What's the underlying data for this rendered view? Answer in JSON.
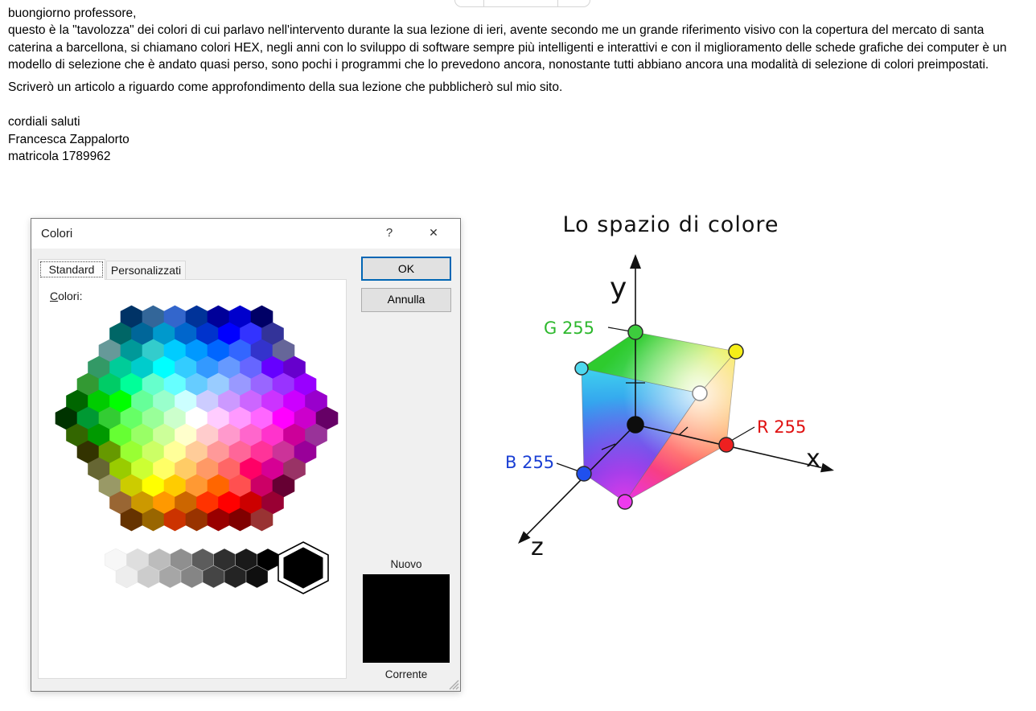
{
  "email": {
    "greeting": "buongiorno professore,",
    "paragraph": "questo è la \"tavolozza\" dei colori di cui parlavo nell'intervento durante la sua lezione di ieri, avente secondo me un grande riferimento visivo con la copertura del mercato di santa caterina a barcellona, si chiamano colori HEX, negli anni con lo sviluppo di software sempre più intelligenti e interattivi e con il miglioramento delle schede grafiche dei computer è un modello di selezione che è andato quasi perso, sono pochi i programmi che lo prevedono ancora, nonostante tutti abbiano ancora una modalità di selezione di colori preimpostati.",
    "article_line": "Scriverò un articolo a riguardo come approfondimento della sua lezione che pubblicherò sul mio sito.",
    "closing": "cordiali saluti",
    "sender_name": "Francesca Zappalorto",
    "sender_id": "matricola 1789962"
  },
  "dialog": {
    "title": "Colori",
    "help_glyph": "?",
    "close_glyph": "✕",
    "tabs": [
      {
        "label": "Standard",
        "active": true
      },
      {
        "label": "Personalizzati",
        "active": false
      }
    ],
    "colors_label_mnemonic": "C",
    "colors_label_rest": "olori:",
    "ok_label": "OK",
    "cancel_label": "Annulla",
    "new_label": "Nuovo",
    "current_label": "Corrente",
    "selected_color": "#000000",
    "accent_border": "#0066b4",
    "palette": {
      "rows": [
        [
          "#003366",
          "#336699",
          "#3366CC",
          "#003399",
          "#000099",
          "#0000CC",
          "#000066"
        ],
        [
          "#006666",
          "#006699",
          "#0099CC",
          "#0066CC",
          "#0033CC",
          "#0000FF",
          "#3333FF",
          "#333399"
        ],
        [
          "#669999",
          "#009999",
          "#33CCCC",
          "#00CCFF",
          "#0099FF",
          "#0066FF",
          "#3366FF",
          "#3333CC",
          "#666699"
        ],
        [
          "#339966",
          "#00CC99",
          "#00CCCC",
          "#00FFFF",
          "#33CCFF",
          "#3399FF",
          "#6699FF",
          "#6666FF",
          "#6600FF",
          "#6600CC"
        ],
        [
          "#339933",
          "#00CC66",
          "#00FF99",
          "#66FFCC",
          "#66FFFF",
          "#66CCFF",
          "#99CCFF",
          "#9999FF",
          "#9966FF",
          "#9933FF",
          "#9900FF"
        ],
        [
          "#006600",
          "#00CC00",
          "#00FF00",
          "#66FF99",
          "#99FFCC",
          "#CCFFFF",
          "#CCCCFF",
          "#CC99FF",
          "#CC66FF",
          "#CC33FF",
          "#CC00FF",
          "#9900CC"
        ],
        [
          "#003300",
          "#009933",
          "#33CC33",
          "#66FF66",
          "#99FF99",
          "#CCFFCC",
          "#FFFFFF",
          "#FFCCFF",
          "#FF99FF",
          "#FF66FF",
          "#FF00FF",
          "#CC00CC",
          "#660066"
        ],
        [
          "#336600",
          "#009900",
          "#66FF33",
          "#99FF66",
          "#CCFF99",
          "#FFFFCC",
          "#FFCCCC",
          "#FF99CC",
          "#FF66CC",
          "#FF33CC",
          "#CC0099",
          "#993399"
        ],
        [
          "#333300",
          "#669900",
          "#99FF33",
          "#CCFF66",
          "#FFFF99",
          "#FFCC99",
          "#FF9999",
          "#FF6699",
          "#FF3399",
          "#CC3399",
          "#990099"
        ],
        [
          "#666633",
          "#99CC00",
          "#CCFF33",
          "#FFFF66",
          "#FFCC66",
          "#FF9966",
          "#FF6666",
          "#FF0066",
          "#D60094",
          "#993366"
        ],
        [
          "#999966",
          "#CCCC00",
          "#FFFF00",
          "#FFCC00",
          "#FF9933",
          "#FF6600",
          "#FF5050",
          "#CC0066",
          "#660033"
        ],
        [
          "#996633",
          "#CC9900",
          "#FF9900",
          "#CC6600",
          "#FF3300",
          "#FF0000",
          "#CC0000",
          "#990033"
        ],
        [
          "#663300",
          "#996600",
          "#CC3300",
          "#993300",
          "#990000",
          "#800000",
          "#993333"
        ]
      ],
      "grays": [
        [
          "#F7F7F7",
          "#DEDEDE",
          "#BCBCBC",
          "#8F8F8F",
          "#5C5C5C",
          "#2F2F2F",
          "#1A1A1A",
          "#000000"
        ],
        [
          "#EDEDED",
          "#CCCCCC",
          "#A6A6A6",
          "#858585",
          "#454545",
          "#242424",
          "#0F0F0F"
        ]
      ]
    }
  },
  "diagram": {
    "title": "Lo spazio di colore",
    "axes": {
      "x": "x",
      "y": "y",
      "z": "z"
    },
    "labels": [
      {
        "text": "G 255",
        "color": "#2db82d"
      },
      {
        "text": "R 255",
        "color": "#e01010"
      },
      {
        "text": "B 255",
        "color": "#1a3fd4"
      }
    ],
    "corners": [
      {
        "name": "green",
        "color": "#3dcc3d"
      },
      {
        "name": "cyan",
        "color": "#4fd8ee"
      },
      {
        "name": "yellow",
        "color": "#f5ee18"
      },
      {
        "name": "white",
        "color": "#ffffff"
      },
      {
        "name": "black",
        "color": "#0d0d0d"
      },
      {
        "name": "red",
        "color": "#ee2020"
      },
      {
        "name": "blue",
        "color": "#2050ee"
      },
      {
        "name": "magenta",
        "color": "#ee3bee"
      }
    ]
  }
}
